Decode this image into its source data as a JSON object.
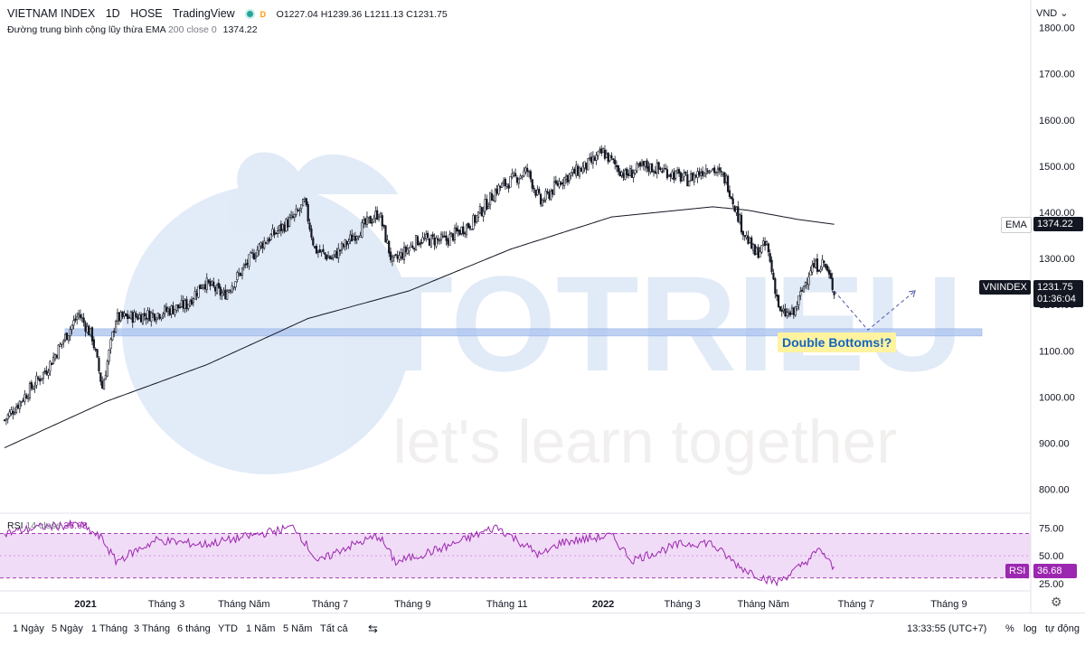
{
  "header": {
    "symbol": "VIETNAM INDEX",
    "interval": "1D",
    "exchange": "HOSE",
    "provider": "TradingView",
    "badge": "D",
    "open_label": "O",
    "open": "1227.04",
    "high_label": "H",
    "high": "1239.36",
    "low_label": "L",
    "low": "1211.13",
    "close_label": "C",
    "close": "1231.75"
  },
  "ema_legend": {
    "name": "Đường trung bình cộng lũy thừa EMA",
    "params": "200 close 0",
    "value": "1374.22"
  },
  "rsi_legend": {
    "name": "RSI",
    "params": "14 close",
    "value": "36.68"
  },
  "price_axis": {
    "currency": "VND",
    "ticks": [
      "1800.00",
      "1700.00",
      "1600.00",
      "1500.00",
      "1400.00",
      "1300.00",
      "1200.00",
      "1100.00",
      "1000.00",
      "900.00",
      "800.00"
    ]
  },
  "rsi_axis": {
    "ticks": [
      "75.00",
      "50.00",
      "25.00"
    ]
  },
  "tags": {
    "ema_name": "EMA",
    "ema_value": "1374.22",
    "vn_name": "VNINDEX",
    "vn_value": "1231.75",
    "vn_countdown": "01:36:04",
    "rsi_name": "RSI",
    "rsi_value": "36.68"
  },
  "annotation": "Double Bottoms!?",
  "watermark": {
    "brand": "TOTRIEU",
    "slogan": "let's learn together"
  },
  "time_axis": [
    "2021",
    "Tháng 3",
    "Tháng Năm",
    "Tháng 7",
    "Tháng 9",
    "Tháng 11",
    "2022",
    "Tháng 3",
    "Tháng Năm",
    "Tháng 7",
    "Tháng 9"
  ],
  "toolbar": {
    "timeframes": [
      "1 Ngày",
      "5 Ngày",
      "1 Tháng",
      "3 Tháng",
      "6 tháng",
      "YTD",
      "1 Năm",
      "5 Năm",
      "Tất cả"
    ],
    "clock": "13:33:55 (UTC+7)",
    "percent": "%",
    "log": "log",
    "auto": "tự động"
  },
  "colors": {
    "up": "#131722",
    "down": "#131722",
    "ema": "#131722",
    "rsi": "#9c27b0",
    "support": "#aec6f0",
    "watermark": "#1e63c8"
  },
  "chart_data": {
    "type": "candlestick",
    "title": "VIETNAM INDEX, 1D, HOSE",
    "y_range": [
      760,
      1860
    ],
    "rsi_range": [
      20,
      85
    ],
    "support_level": 1140,
    "price_keypoints": [
      {
        "t": 0,
        "v": 950
      },
      {
        "t": 25,
        "v": 1060
      },
      {
        "t": 44,
        "v": 1180
      },
      {
        "t": 52,
        "v": 1130
      },
      {
        "t": 58,
        "v": 1020
      },
      {
        "t": 66,
        "v": 1170
      },
      {
        "t": 90,
        "v": 1180
      },
      {
        "t": 108,
        "v": 1200
      },
      {
        "t": 118,
        "v": 1250
      },
      {
        "t": 130,
        "v": 1220
      },
      {
        "t": 152,
        "v": 1330
      },
      {
        "t": 172,
        "v": 1390
      },
      {
        "t": 178,
        "v": 1420
      },
      {
        "t": 184,
        "v": 1320
      },
      {
        "t": 194,
        "v": 1300
      },
      {
        "t": 210,
        "v": 1360
      },
      {
        "t": 222,
        "v": 1400
      },
      {
        "t": 230,
        "v": 1290
      },
      {
        "t": 245,
        "v": 1340
      },
      {
        "t": 262,
        "v": 1340
      },
      {
        "t": 278,
        "v": 1380
      },
      {
        "t": 292,
        "v": 1450
      },
      {
        "t": 310,
        "v": 1490
      },
      {
        "t": 318,
        "v": 1420
      },
      {
        "t": 330,
        "v": 1470
      },
      {
        "t": 345,
        "v": 1500
      },
      {
        "t": 355,
        "v": 1530
      },
      {
        "t": 368,
        "v": 1480
      },
      {
        "t": 380,
        "v": 1500
      },
      {
        "t": 392,
        "v": 1490
      },
      {
        "t": 405,
        "v": 1470
      },
      {
        "t": 418,
        "v": 1500
      },
      {
        "t": 428,
        "v": 1470
      },
      {
        "t": 438,
        "v": 1360
      },
      {
        "t": 445,
        "v": 1310
      },
      {
        "t": 452,
        "v": 1330
      },
      {
        "t": 460,
        "v": 1180
      },
      {
        "t": 468,
        "v": 1180
      },
      {
        "t": 478,
        "v": 1280
      },
      {
        "t": 486,
        "v": 1290
      },
      {
        "t": 492,
        "v": 1230
      }
    ],
    "ema_keypoints": [
      {
        "t": 0,
        "v": 890
      },
      {
        "t": 60,
        "v": 990
      },
      {
        "t": 120,
        "v": 1070
      },
      {
        "t": 180,
        "v": 1170
      },
      {
        "t": 240,
        "v": 1230
      },
      {
        "t": 300,
        "v": 1320
      },
      {
        "t": 360,
        "v": 1390
      },
      {
        "t": 420,
        "v": 1412
      },
      {
        "t": 440,
        "v": 1405
      },
      {
        "t": 470,
        "v": 1385
      },
      {
        "t": 492,
        "v": 1374
      }
    ],
    "rsi_keypoints": [
      {
        "t": 0,
        "v": 70
      },
      {
        "t": 22,
        "v": 76
      },
      {
        "t": 45,
        "v": 78
      },
      {
        "t": 58,
        "v": 65
      },
      {
        "t": 66,
        "v": 45
      },
      {
        "t": 90,
        "v": 64
      },
      {
        "t": 118,
        "v": 60
      },
      {
        "t": 140,
        "v": 66
      },
      {
        "t": 172,
        "v": 76
      },
      {
        "t": 186,
        "v": 44
      },
      {
        "t": 200,
        "v": 56
      },
      {
        "t": 222,
        "v": 68
      },
      {
        "t": 232,
        "v": 44
      },
      {
        "t": 262,
        "v": 58
      },
      {
        "t": 292,
        "v": 76
      },
      {
        "t": 318,
        "v": 50
      },
      {
        "t": 330,
        "v": 62
      },
      {
        "t": 360,
        "v": 68
      },
      {
        "t": 372,
        "v": 46
      },
      {
        "t": 400,
        "v": 60
      },
      {
        "t": 418,
        "v": 62
      },
      {
        "t": 436,
        "v": 40
      },
      {
        "t": 450,
        "v": 30
      },
      {
        "t": 458,
        "v": 26
      },
      {
        "t": 470,
        "v": 38
      },
      {
        "t": 484,
        "v": 56
      },
      {
        "t": 492,
        "v": 37
      }
    ],
    "projection": [
      {
        "t": 492,
        "v": 1230
      },
      {
        "t": 512,
        "v": 1145
      },
      {
        "t": 540,
        "v": 1230
      }
    ]
  }
}
